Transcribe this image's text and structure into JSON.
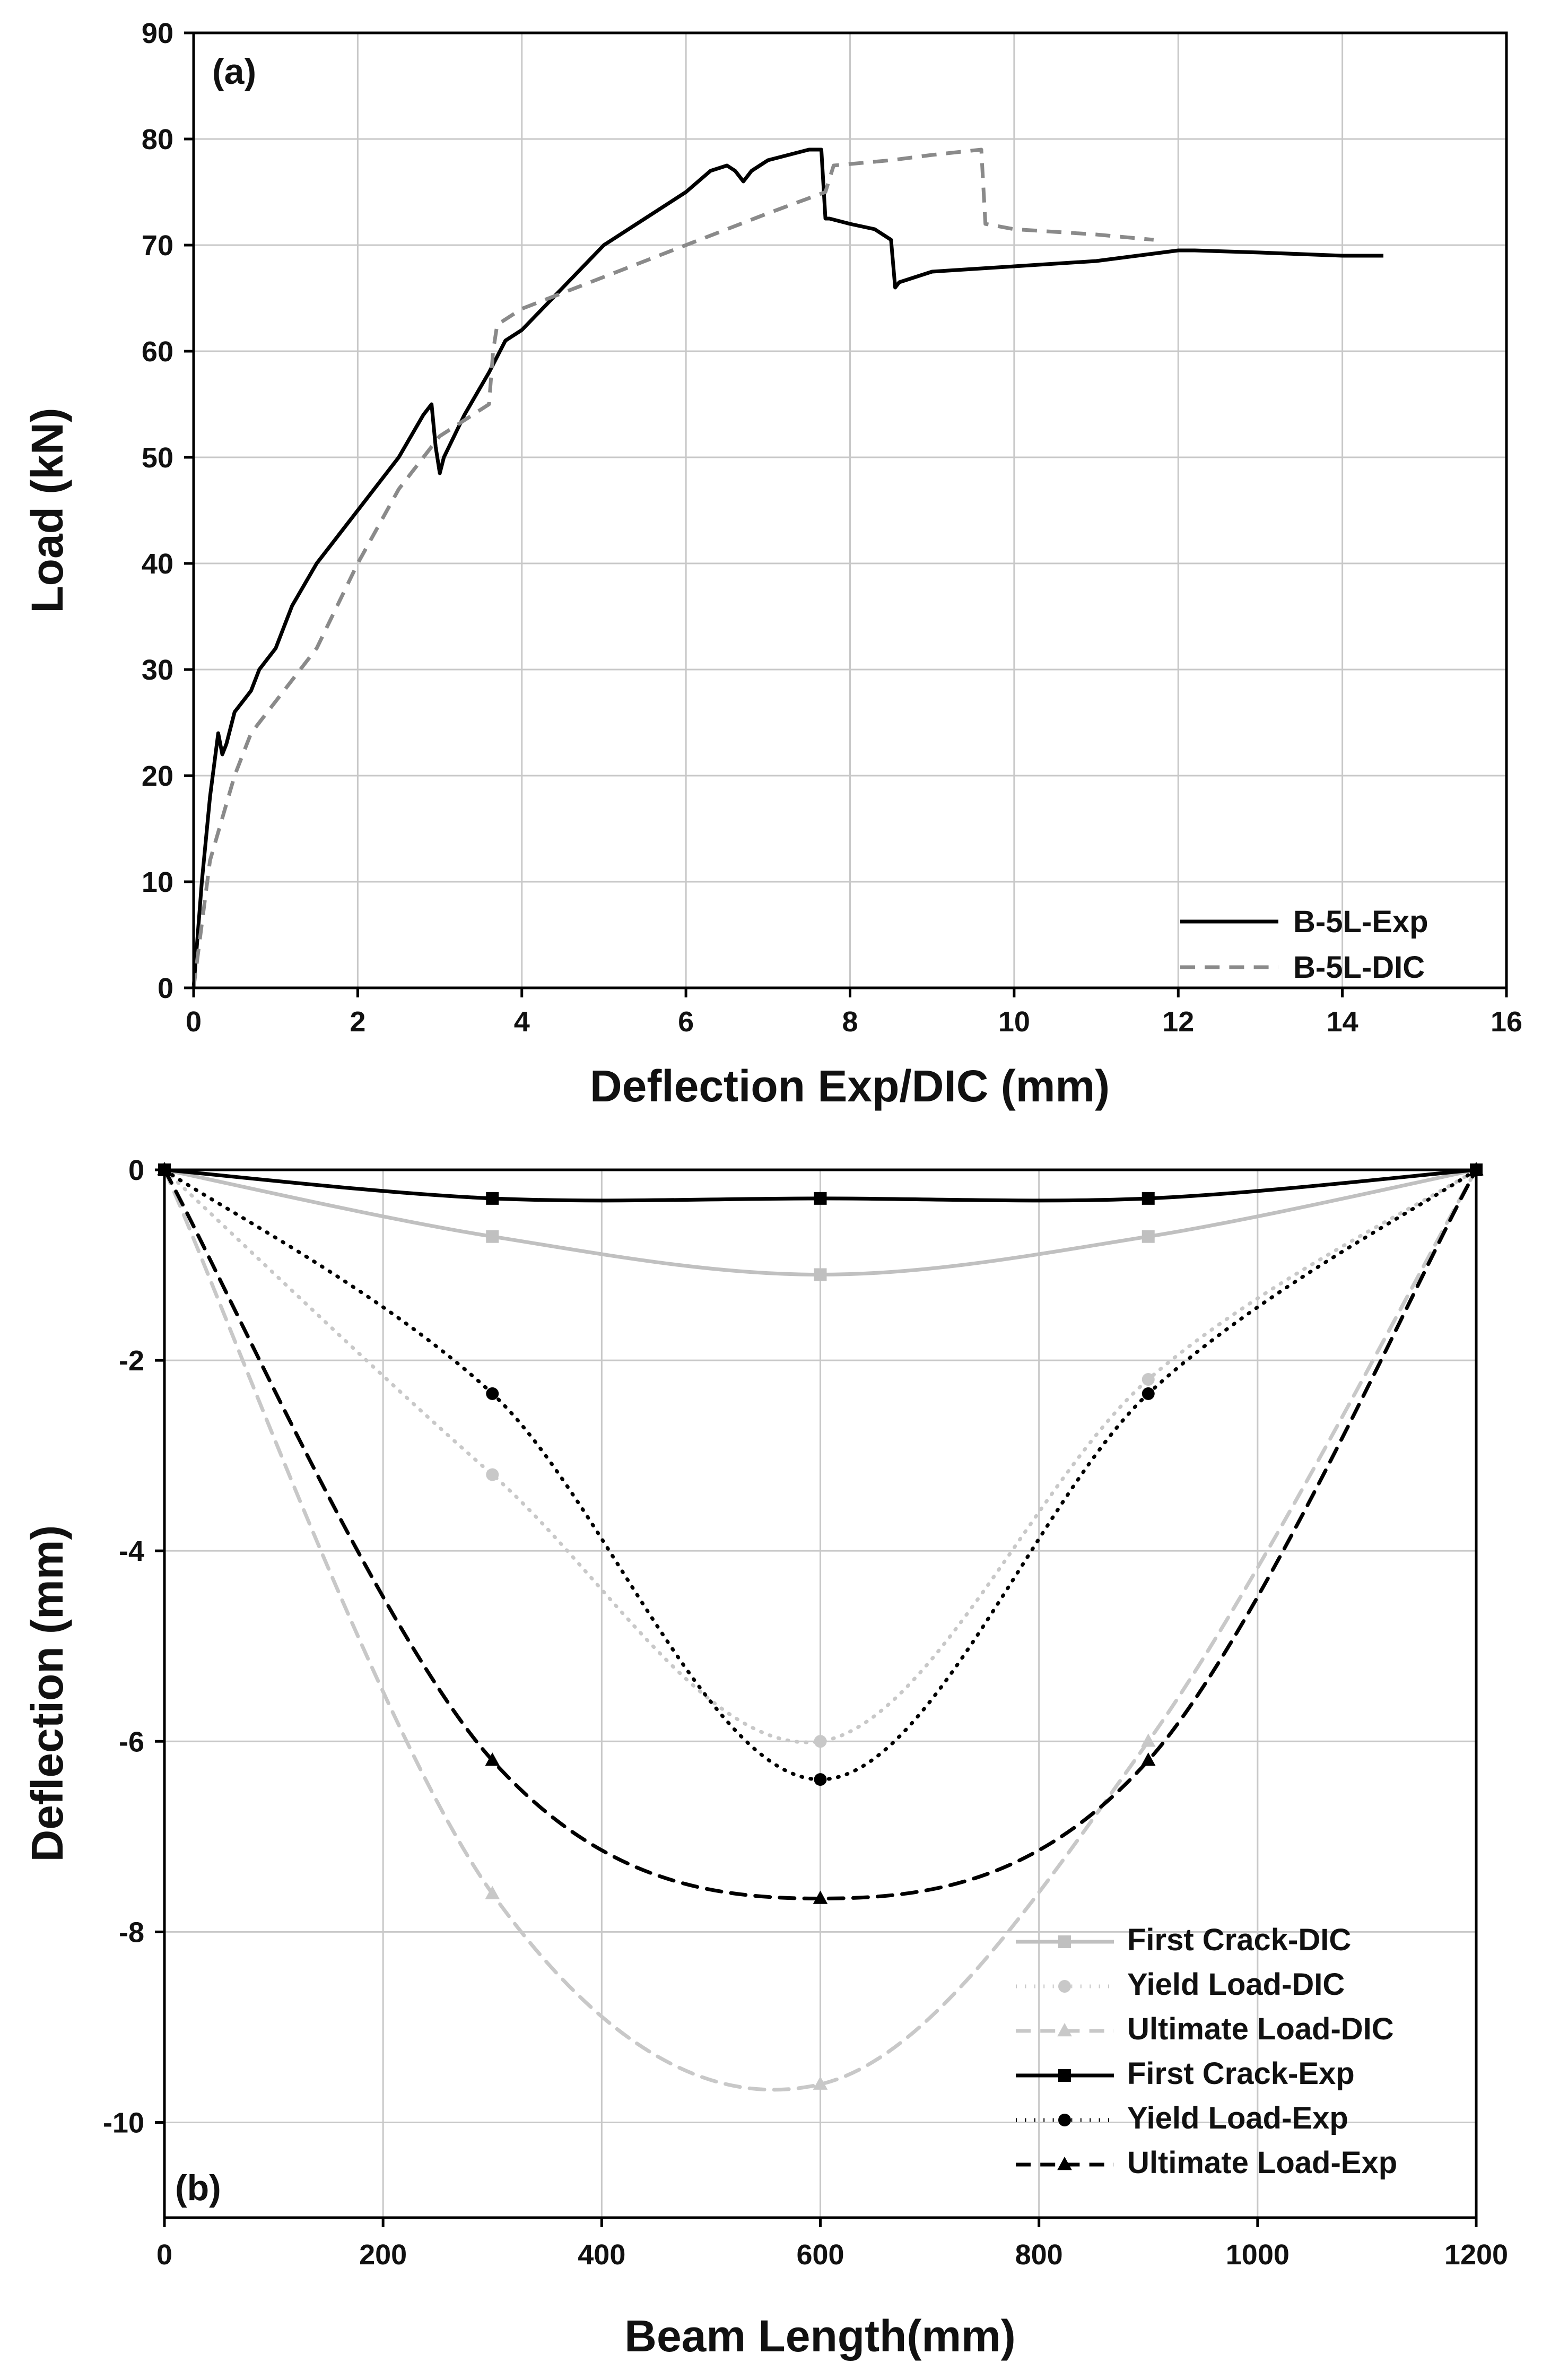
{
  "chart_data": [
    {
      "type": "line",
      "panel_label": "(a)",
      "xlabel": "Deflection Exp/DIC (mm)",
      "ylabel": "Load (kN)",
      "xlim": [
        0,
        16
      ],
      "ylim": [
        0,
        90
      ],
      "xticks": [
        0,
        2,
        4,
        6,
        8,
        10,
        12,
        14,
        16
      ],
      "yticks": [
        0,
        10,
        20,
        30,
        40,
        50,
        60,
        70,
        80,
        90
      ],
      "grid": true,
      "legend_position": "bottom-right",
      "series": [
        {
          "name": "B-5L-Exp",
          "color": "#000000",
          "style": "solid",
          "x": [
            0,
            0.1,
            0.2,
            0.3,
            0.35,
            0.4,
            0.5,
            0.6,
            0.7,
            0.8,
            0.9,
            1.0,
            1.2,
            1.5,
            2.0,
            2.2,
            2.5,
            2.8,
            2.9,
            2.95,
            3.0,
            3.05,
            3.3,
            3.6,
            3.8,
            4.0,
            4.5,
            5.0,
            5.5,
            6.0,
            6.3,
            6.5,
            6.6,
            6.7,
            6.8,
            7.0,
            7.5,
            7.65,
            7.7,
            7.75,
            8.0,
            8.3,
            8.5,
            8.55,
            8.6,
            8.8,
            9.0,
            10.0,
            11.0,
            11.5,
            12.0,
            12.2,
            13.0,
            14.0,
            14.5
          ],
          "y": [
            0,
            10,
            18,
            24,
            22,
            23,
            26,
            27,
            28,
            30,
            31,
            32,
            36,
            40,
            45,
            47,
            50,
            54,
            55,
            51,
            48.5,
            50,
            54,
            58,
            61,
            62,
            66,
            70,
            72.5,
            75,
            77,
            77.5,
            77,
            76,
            77,
            78,
            79,
            79,
            72.5,
            72.5,
            72,
            71.5,
            70.5,
            66,
            66.5,
            67,
            67.5,
            68,
            68.5,
            69,
            69.5,
            69.5,
            69.3,
            69,
            69
          ]
        },
        {
          "name": "B-5L-DIC",
          "color": "#8a8a8a",
          "style": "dashed",
          "x": [
            0,
            0.2,
            0.5,
            0.7,
            1.0,
            1.5,
            2.0,
            2.5,
            3.0,
            3.3,
            3.6,
            3.65,
            3.7,
            4.0,
            5.0,
            6.0,
            7.0,
            7.7,
            7.8,
            8.5,
            9.0,
            9.6,
            9.65,
            10.0,
            11.0,
            11.7
          ],
          "y": [
            0,
            12,
            20,
            24,
            27,
            32,
            40,
            47,
            52,
            53.5,
            55,
            60,
            62.5,
            64,
            67,
            70,
            73,
            75,
            77.5,
            78,
            78.5,
            79,
            72,
            71.5,
            71,
            70.5
          ]
        }
      ]
    },
    {
      "type": "line",
      "panel_label": "(b)",
      "xlabel": "Beam Length(mm)",
      "ylabel": "Deflection (mm)",
      "xlim": [
        0,
        1200
      ],
      "ylim": [
        -11,
        0
      ],
      "xticks": [
        0,
        200,
        400,
        600,
        800,
        1000,
        1200
      ],
      "yticks": [
        0,
        -2,
        -4,
        -6,
        -8,
        -10
      ],
      "grid": true,
      "legend_position": "bottom-right",
      "x": [
        0,
        300,
        600,
        900,
        1200
      ],
      "series": [
        {
          "name": "First Crack-DIC",
          "color": "#c0c0c0",
          "style": "solid",
          "marker": "square",
          "values": [
            0,
            -0.7,
            -1.1,
            -0.7,
            0
          ]
        },
        {
          "name": "Yield Load-DIC",
          "color": "#c8c8c8",
          "style": "dotted",
          "marker": "circle",
          "values": [
            0,
            -3.2,
            -6.0,
            -2.2,
            0
          ]
        },
        {
          "name": "Ultimate Load-DIC",
          "color": "#c8c8c8",
          "style": "dashed",
          "marker": "triangle",
          "values": [
            0,
            -7.6,
            -9.6,
            -6.0,
            0
          ]
        },
        {
          "name": "First Crack-Exp",
          "color": "#000000",
          "style": "solid",
          "marker": "square",
          "values": [
            0,
            -0.3,
            -0.3,
            -0.3,
            0
          ]
        },
        {
          "name": "Yield Load-Exp",
          "color": "#000000",
          "style": "dotted",
          "marker": "circle",
          "values": [
            0,
            -2.35,
            -6.4,
            -2.35,
            0
          ]
        },
        {
          "name": "Ultimate Load-Exp",
          "color": "#000000",
          "style": "dashed",
          "marker": "triangle",
          "values": [
            0,
            -6.2,
            -7.65,
            -6.2,
            0
          ]
        }
      ]
    }
  ]
}
